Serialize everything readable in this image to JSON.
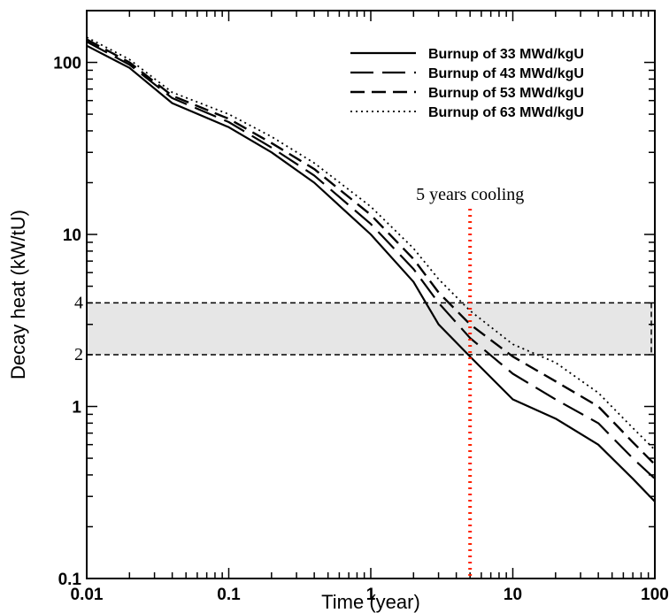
{
  "chart_data": {
    "type": "line",
    "xscale": "log",
    "yscale": "log",
    "xlim": [
      0.01,
      100
    ],
    "ylim": [
      0.1,
      200
    ],
    "xlabel": "Time (year)",
    "ylabel": "Decay heat (kW/tU)",
    "xticks": [
      {
        "value": 0.01,
        "label": "0.01"
      },
      {
        "value": 0.1,
        "label": "0.1"
      },
      {
        "value": 1,
        "label": "1"
      },
      {
        "value": 10,
        "label": "10"
      },
      {
        "value": 100,
        "label": "100"
      }
    ],
    "yticks": [
      {
        "value": 0.1,
        "label": "0.1"
      },
      {
        "value": 1,
        "label": "1"
      },
      {
        "value": 10,
        "label": "10"
      },
      {
        "value": 100,
        "label": "100"
      }
    ],
    "legend_position": "top-right",
    "series": [
      {
        "name": "Burnup of 33 MWd/kgU",
        "style": "solid",
        "x": [
          0.01,
          0.02,
          0.04,
          0.1,
          0.2,
          0.4,
          1,
          2,
          3,
          5,
          10,
          20,
          40,
          70,
          100
        ],
        "y": [
          125,
          93,
          58,
          42,
          30,
          20,
          10,
          5.3,
          3.0,
          1.95,
          1.1,
          0.85,
          0.6,
          0.38,
          0.28
        ]
      },
      {
        "name": "Burnup of 43 MWd/kgU",
        "style": "long-dash",
        "x": [
          0.01,
          0.02,
          0.04,
          0.1,
          0.2,
          0.4,
          1,
          2,
          3,
          5,
          10,
          20,
          40,
          70,
          100
        ],
        "y": [
          132,
          97,
          62,
          45,
          32,
          22,
          11.5,
          6.3,
          4.0,
          2.5,
          1.55,
          1.1,
          0.8,
          0.5,
          0.38
        ]
      },
      {
        "name": "Burnup of 53 MWd/kgU",
        "style": "dash",
        "x": [
          0.01,
          0.02,
          0.04,
          0.1,
          0.2,
          0.4,
          1,
          2,
          3,
          5,
          10,
          20,
          40,
          70,
          100
        ],
        "y": [
          136,
          100,
          64,
          47,
          34,
          24,
          13.0,
          7.2,
          4.6,
          3.0,
          1.95,
          1.4,
          1.0,
          0.62,
          0.46
        ]
      },
      {
        "name": "Burnup of 63 MWd/kgU",
        "style": "dotted",
        "x": [
          0.01,
          0.02,
          0.04,
          0.1,
          0.2,
          0.4,
          1,
          2,
          3,
          5,
          10,
          20,
          40,
          70,
          100
        ],
        "y": [
          140,
          104,
          67,
          50,
          37,
          26,
          14.5,
          8.3,
          5.5,
          3.6,
          2.3,
          1.8,
          1.2,
          0.75,
          0.56
        ]
      }
    ],
    "annotations": [
      {
        "type": "band",
        "y_from": 2,
        "y_to": 4,
        "fill": "#e6e6e6",
        "label_low": "2",
        "label_high": "4"
      },
      {
        "type": "vline",
        "x": 5,
        "color": "#ff2200",
        "style": "dotted",
        "text": "5 years cooling"
      }
    ]
  }
}
